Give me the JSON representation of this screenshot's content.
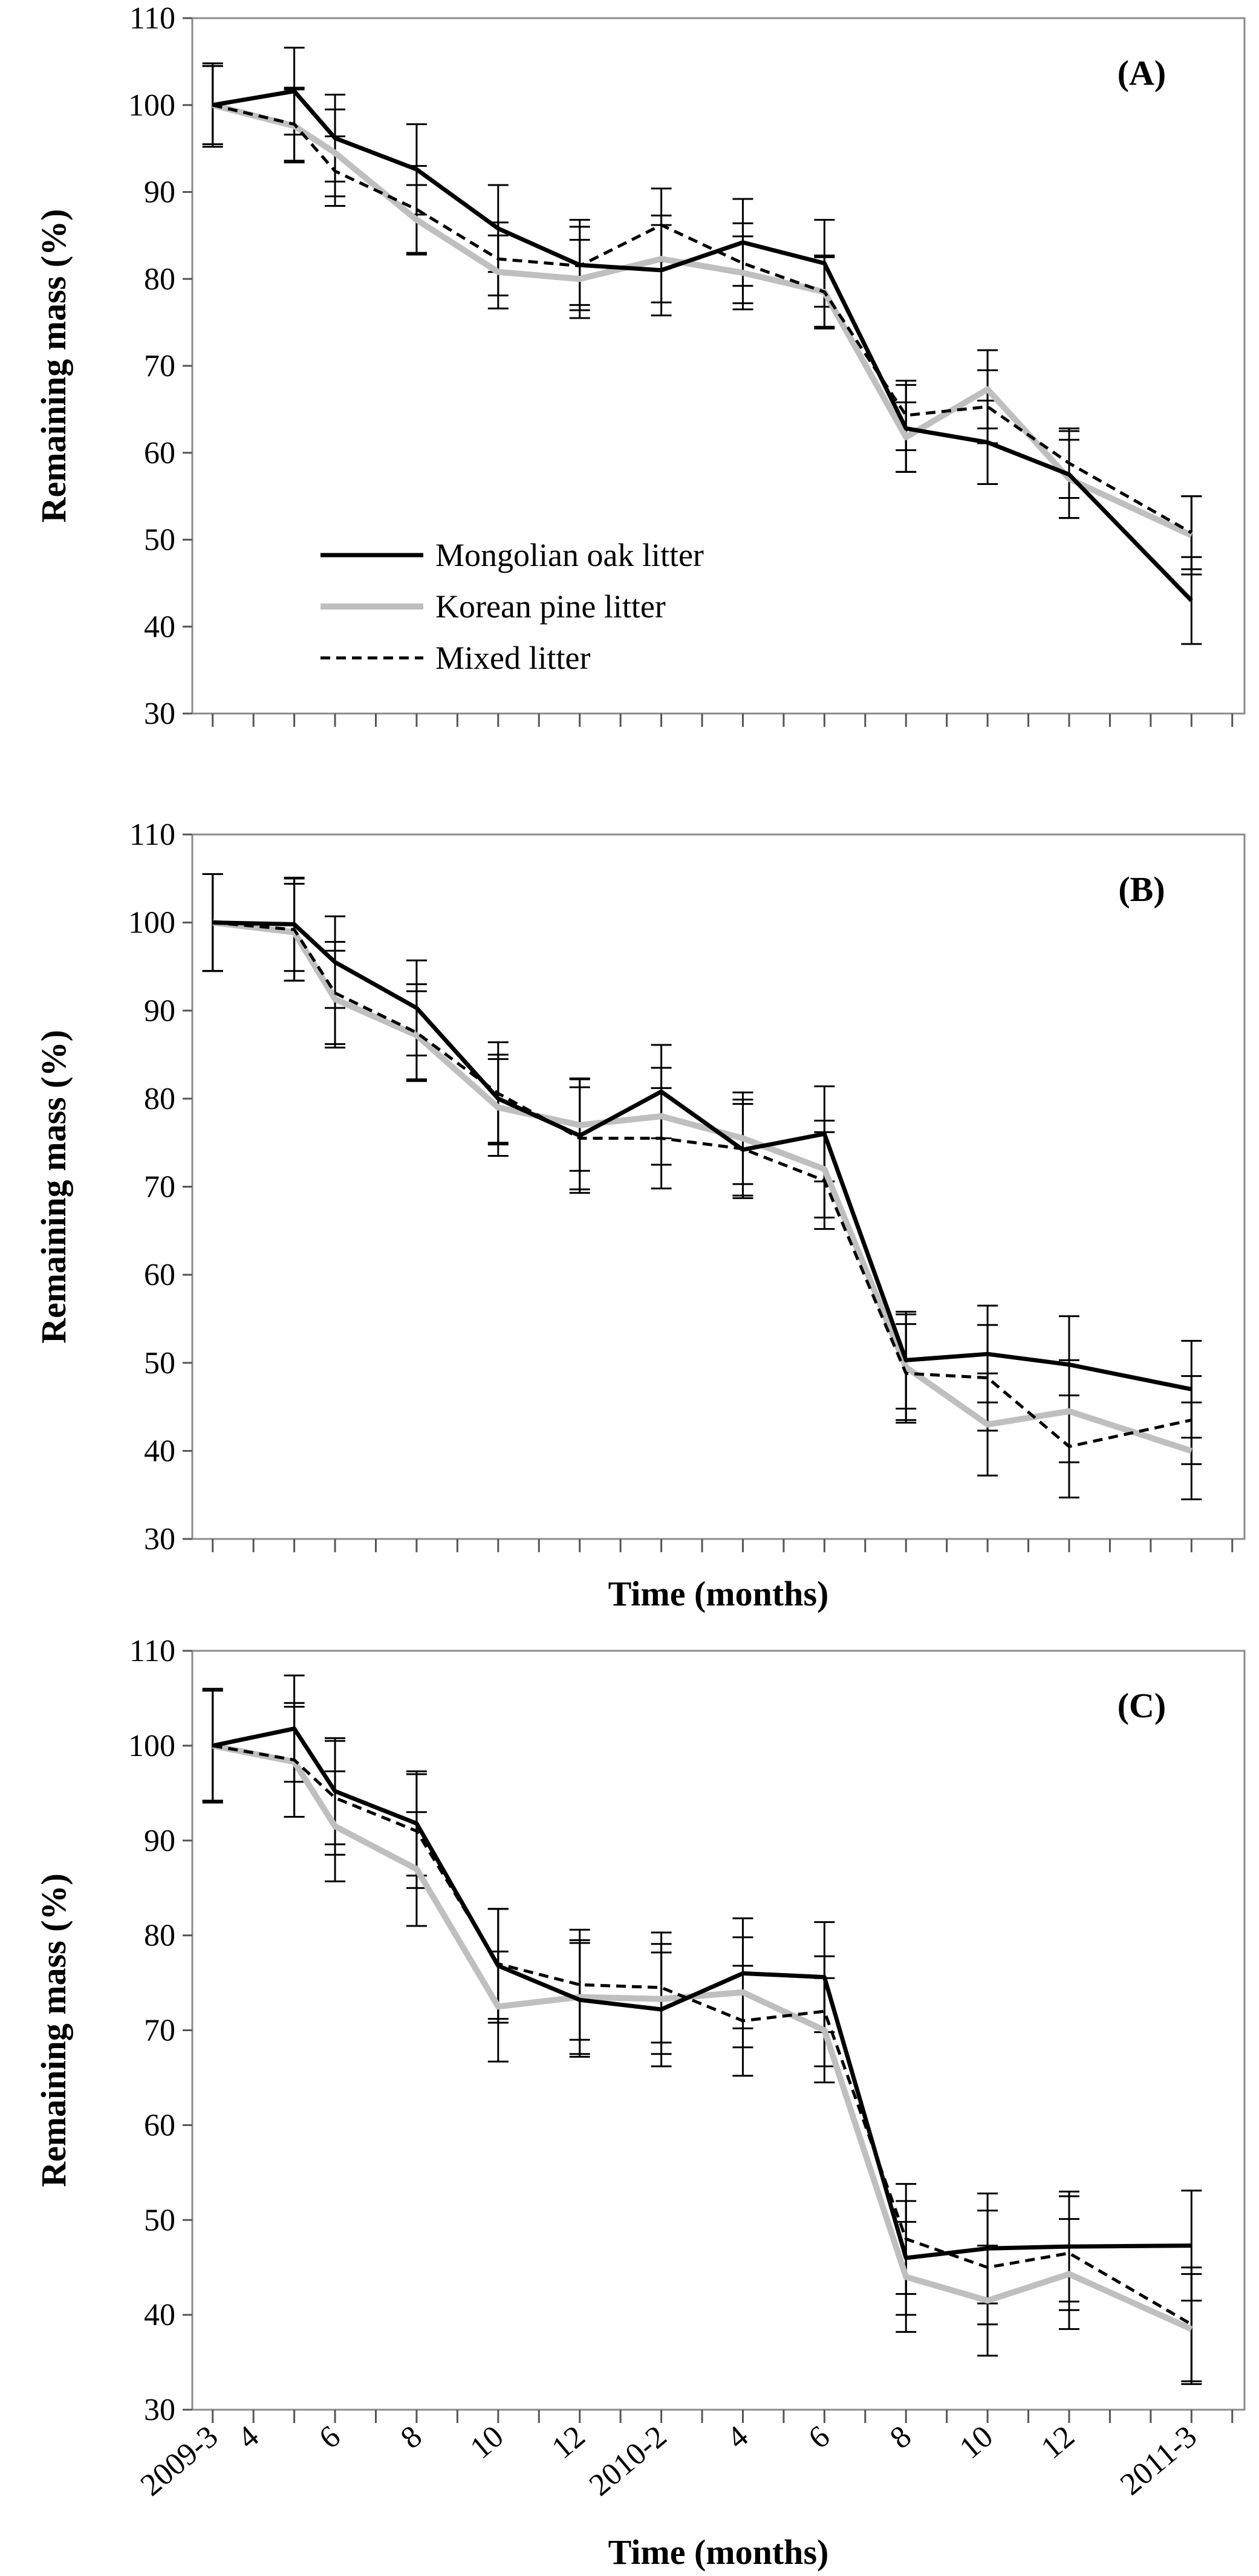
{
  "chart_data": [
    {
      "type": "line",
      "panel_label": "(A)",
      "ylabel": "Remaining mass (%)",
      "xlabel": "",
      "ylim": [
        30,
        110
      ],
      "yticks": [
        30,
        40,
        50,
        60,
        70,
        80,
        90,
        100,
        110
      ],
      "x": [
        0,
        2,
        3,
        5,
        7,
        9,
        11,
        13,
        15,
        17,
        19,
        21,
        24
      ],
      "legend": {
        "position": "lower-left",
        "entries": [
          "Mongolian oak litter",
          "Korean pine litter",
          "Mixed litter"
        ]
      },
      "series": [
        {
          "name": "Mongolian oak litter",
          "color": "#000000",
          "style": "solid",
          "values": [
            100,
            101.6,
            96.2,
            92.6,
            85.8,
            81.6,
            81.0,
            84.2,
            81.8,
            62.8,
            61.2,
            57.5,
            43.0
          ],
          "errors": [
            4.5,
            5.0,
            5.0,
            5.2,
            5.0,
            5.2,
            5.2,
            5.0,
            5.0,
            5.0,
            4.8,
            5.0,
            5.0
          ]
        },
        {
          "name": "Korean pine litter",
          "color": "#bfbfbf",
          "style": "solid",
          "values": [
            100,
            97.6,
            94.5,
            86.8,
            80.8,
            80.0,
            82.3,
            80.7,
            78.5,
            61.8,
            67.3,
            57.0,
            50.5
          ],
          "errors": [
            4.5,
            4.2,
            5.0,
            4.0,
            4.2,
            4.5,
            5.0,
            4.2,
            4.2,
            4.0,
            4.5,
            4.5,
            4.5
          ]
        },
        {
          "name": "Mixed litter",
          "color": "#000000",
          "style": "dashed",
          "values": [
            100,
            97.8,
            92.4,
            88.0,
            82.3,
            81.5,
            86.2,
            81.8,
            78.5,
            64.3,
            65.3,
            58.8,
            50.8
          ],
          "errors": [
            4.8,
            4.2,
            4.0,
            5.0,
            4.2,
            4.5,
            4.2,
            4.6,
            4.0,
            4.0,
            4.2,
            4.0,
            4.2
          ]
        }
      ]
    },
    {
      "type": "line",
      "panel_label": "(B)",
      "ylabel": "Remaining mass (%)",
      "xlabel": "Time (months)",
      "ylim": [
        30,
        110
      ],
      "yticks": [
        30,
        40,
        50,
        60,
        70,
        80,
        90,
        100,
        110
      ],
      "x": [
        0,
        2,
        3,
        5,
        7,
        9,
        11,
        13,
        15,
        17,
        19,
        21,
        24
      ],
      "series": [
        {
          "name": "Mongolian oak litter",
          "color": "#000000",
          "style": "solid",
          "values": [
            100,
            99.8,
            95.5,
            90.3,
            80.0,
            75.8,
            80.8,
            74.2,
            76.0,
            50.3,
            51.0,
            49.8,
            47.0
          ],
          "errors": [
            5.5,
            5.3,
            5.2,
            5.4,
            5.0,
            6.5,
            5.3,
            5.2,
            5.4,
            5.5,
            5.5,
            5.5,
            5.5
          ]
        },
        {
          "name": "Korean pine litter",
          "color": "#bfbfbf",
          "style": "solid",
          "values": [
            100,
            98.9,
            91.3,
            87.2,
            79.0,
            77.0,
            78.0,
            75.5,
            72.0,
            49.5,
            43.0,
            44.5,
            40.0
          ],
          "errors": [
            5.5,
            5.5,
            5.5,
            5.0,
            5.5,
            5.2,
            5.5,
            5.2,
            5.5,
            6.0,
            5.8,
            5.8,
            5.5
          ]
        },
        {
          "name": "Mixed litter",
          "color": "#000000",
          "style": "dashed",
          "values": [
            100,
            99.2,
            92.0,
            87.5,
            80.6,
            75.5,
            75.5,
            74.3,
            70.7,
            48.8,
            48.3,
            40.5,
            43.5
          ],
          "errors": [
            5.5,
            5.8,
            5.8,
            5.5,
            5.8,
            5.8,
            5.7,
            5.6,
            5.5,
            5.6,
            6.0,
            5.8,
            5.0
          ]
        }
      ]
    },
    {
      "type": "line",
      "panel_label": "(C)",
      "ylabel": "Remaining mass (%)",
      "xlabel": "Time (months)",
      "ylim": [
        30,
        110
      ],
      "yticks": [
        30,
        40,
        50,
        60,
        70,
        80,
        90,
        100,
        110
      ],
      "x": [
        0,
        2,
        3,
        5,
        7,
        9,
        11,
        13,
        15,
        17,
        19,
        21,
        24
      ],
      "xticklabels": [
        {
          "label": "2009-3",
          "x": 0
        },
        {
          "label": "4",
          "x": 1
        },
        {
          "label": "6",
          "x": 3
        },
        {
          "label": "8",
          "x": 5
        },
        {
          "label": "10",
          "x": 7
        },
        {
          "label": "12",
          "x": 9
        },
        {
          "label": "2010-2",
          "x": 11
        },
        {
          "label": "4",
          "x": 13
        },
        {
          "label": "6",
          "x": 15
        },
        {
          "label": "8",
          "x": 17
        },
        {
          "label": "10",
          "x": 19
        },
        {
          "label": "12",
          "x": 21
        },
        {
          "label": "2011-3",
          "x": 24
        }
      ],
      "series": [
        {
          "name": "Mongolian oak litter",
          "color": "#000000",
          "style": "solid",
          "values": [
            100,
            101.8,
            95.2,
            91.8,
            76.8,
            73.2,
            72.2,
            76.0,
            75.6,
            46.0,
            47.0,
            47.2,
            47.3
          ],
          "errors": [
            5.8,
            5.6,
            5.6,
            5.5,
            6.0,
            6.0,
            6.0,
            5.8,
            5.8,
            6.0,
            5.8,
            5.8,
            5.8
          ]
        },
        {
          "name": "Korean pine litter",
          "color": "#bfbfbf",
          "style": "solid",
          "values": [
            100,
            98.3,
            91.5,
            87.0,
            72.5,
            73.5,
            73.3,
            74.0,
            70.0,
            44.0,
            41.5,
            44.3,
            38.5
          ],
          "errors": [
            5.8,
            5.8,
            5.8,
            6.0,
            5.8,
            6.0,
            5.8,
            5.8,
            5.5,
            5.8,
            5.8,
            5.8,
            5.8
          ]
        },
        {
          "name": "Mixed litter",
          "color": "#000000",
          "style": "dashed",
          "values": [
            100,
            98.5,
            94.5,
            91.0,
            77.0,
            74.8,
            74.5,
            71.0,
            72.0,
            48.0,
            45.0,
            46.5,
            39.0
          ],
          "errors": [
            6.0,
            6.0,
            6.0,
            6.0,
            5.8,
            5.8,
            5.8,
            5.8,
            5.8,
            5.8,
            6.0,
            6.0,
            6.0
          ]
        }
      ]
    }
  ]
}
